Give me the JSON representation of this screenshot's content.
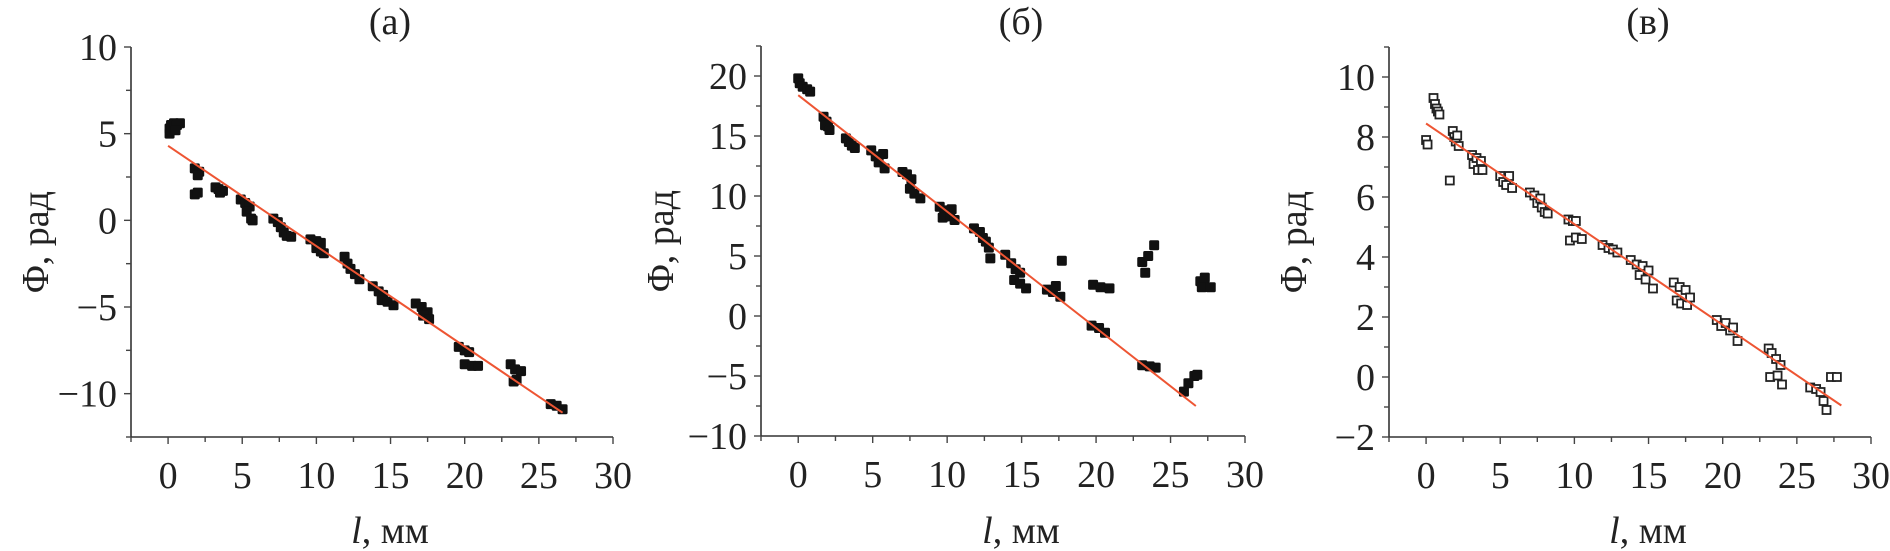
{
  "chart_data": [
    {
      "type": "scatter",
      "title": "(а)",
      "xlabel_italic": "l",
      "xlabel_rest": ", мм",
      "ylabel": "Φ, рад",
      "xlim": [
        -2.5,
        30
      ],
      "ylim": [
        -12.5,
        10
      ],
      "xticks": [
        0,
        5,
        10,
        15,
        20,
        25,
        30
      ],
      "yticks": [
        -10,
        -5,
        0,
        5,
        10
      ],
      "marker": "filled-square",
      "marker_color": "#111111",
      "fit_color": "#ee5533",
      "fit_line": [
        [
          0,
          4.3
        ],
        [
          26.6,
          -11.1
        ]
      ],
      "points": [
        [
          0.1,
          5.0
        ],
        [
          0.1,
          5.3
        ],
        [
          0.2,
          5.5
        ],
        [
          0.4,
          5.6
        ],
        [
          0.6,
          5.5
        ],
        [
          0.8,
          5.6
        ],
        [
          0.5,
          5.2
        ],
        [
          1.8,
          3.0
        ],
        [
          2.1,
          2.8
        ],
        [
          2.0,
          2.6
        ],
        [
          1.8,
          1.5
        ],
        [
          2.0,
          1.6
        ],
        [
          3.2,
          1.9
        ],
        [
          3.4,
          1.8
        ],
        [
          3.7,
          1.7
        ],
        [
          3.5,
          1.6
        ],
        [
          4.9,
          1.2
        ],
        [
          5.2,
          1.0
        ],
        [
          5.5,
          0.8
        ],
        [
          5.3,
          0.5
        ],
        [
          5.6,
          0.1
        ],
        [
          5.7,
          0.0
        ],
        [
          7.1,
          0.1
        ],
        [
          7.4,
          -0.1
        ],
        [
          7.6,
          -0.4
        ],
        [
          7.8,
          -0.7
        ],
        [
          8.0,
          -0.9
        ],
        [
          8.3,
          -0.95
        ],
        [
          9.6,
          -1.1
        ],
        [
          10.0,
          -1.2
        ],
        [
          10.3,
          -1.3
        ],
        [
          10.0,
          -1.6
        ],
        [
          10.3,
          -1.8
        ],
        [
          10.5,
          -1.9
        ],
        [
          11.9,
          -2.1
        ],
        [
          12.1,
          -2.5
        ],
        [
          12.3,
          -2.8
        ],
        [
          12.6,
          -3.1
        ],
        [
          12.9,
          -3.4
        ],
        [
          13.8,
          -3.8
        ],
        [
          14.2,
          -4.1
        ],
        [
          14.5,
          -4.3
        ],
        [
          14.4,
          -4.6
        ],
        [
          14.8,
          -4.7
        ],
        [
          15.2,
          -4.9
        ],
        [
          16.7,
          -4.8
        ],
        [
          17.1,
          -5.0
        ],
        [
          17.5,
          -5.3
        ],
        [
          17.2,
          -5.5
        ],
        [
          17.6,
          -5.7
        ],
        [
          19.6,
          -7.3
        ],
        [
          20.0,
          -7.5
        ],
        [
          20.3,
          -7.6
        ],
        [
          20.0,
          -8.3
        ],
        [
          20.5,
          -8.4
        ],
        [
          20.9,
          -8.4
        ],
        [
          23.1,
          -8.3
        ],
        [
          23.4,
          -8.6
        ],
        [
          23.8,
          -8.7
        ],
        [
          23.5,
          -9.2
        ],
        [
          23.3,
          -9.3
        ],
        [
          25.8,
          -10.6
        ],
        [
          26.2,
          -10.7
        ],
        [
          26.6,
          -10.9
        ]
      ]
    },
    {
      "type": "scatter",
      "title": "(б)",
      "xlabel_italic": "l",
      "xlabel_rest": ", мм",
      "ylabel": "Φ, рад",
      "xlim": [
        -2.5,
        30
      ],
      "ylim": [
        -10,
        22.5
      ],
      "xticks": [
        0,
        5,
        10,
        15,
        20,
        25,
        30
      ],
      "yticks": [
        -10,
        -5,
        0,
        5,
        10,
        15,
        20
      ],
      "marker": "filled-square",
      "marker_color": "#111111",
      "fit_color": "#ee5533",
      "fit_line": [
        [
          0,
          18.4
        ],
        [
          26.7,
          -7.5
        ]
      ],
      "points": [
        [
          0.0,
          19.8
        ],
        [
          0.1,
          19.4
        ],
        [
          0.3,
          19.1
        ],
        [
          0.6,
          18.9
        ],
        [
          0.8,
          18.7
        ],
        [
          1.7,
          16.6
        ],
        [
          1.9,
          16.2
        ],
        [
          2.0,
          15.8
        ],
        [
          1.8,
          15.9
        ],
        [
          2.1,
          15.5
        ],
        [
          3.2,
          14.8
        ],
        [
          3.4,
          14.5
        ],
        [
          3.6,
          14.2
        ],
        [
          3.8,
          14.0
        ],
        [
          4.9,
          13.8
        ],
        [
          5.2,
          13.3
        ],
        [
          5.4,
          12.8
        ],
        [
          5.7,
          13.5
        ],
        [
          5.8,
          12.3
        ],
        [
          7.0,
          12.0
        ],
        [
          7.3,
          11.8
        ],
        [
          7.6,
          11.4
        ],
        [
          7.5,
          10.6
        ],
        [
          7.8,
          10.2
        ],
        [
          8.2,
          9.8
        ],
        [
          9.5,
          9.1
        ],
        [
          9.8,
          8.8
        ],
        [
          10.3,
          8.9
        ],
        [
          9.7,
          8.2
        ],
        [
          10.2,
          8.3
        ],
        [
          10.5,
          8.0
        ],
        [
          11.8,
          7.3
        ],
        [
          12.2,
          7.0
        ],
        [
          12.4,
          6.5
        ],
        [
          12.6,
          6.2
        ],
        [
          12.8,
          5.7
        ],
        [
          12.9,
          4.8
        ],
        [
          13.9,
          5.1
        ],
        [
          14.3,
          4.4
        ],
        [
          14.6,
          3.9
        ],
        [
          14.9,
          3.6
        ],
        [
          14.5,
          3.0
        ],
        [
          14.9,
          2.7
        ],
        [
          15.3,
          2.3
        ],
        [
          16.7,
          2.2
        ],
        [
          17.1,
          2.0
        ],
        [
          17.3,
          2.5
        ],
        [
          17.6,
          1.6
        ],
        [
          17.7,
          4.6
        ],
        [
          19.8,
          2.6
        ],
        [
          20.3,
          2.4
        ],
        [
          20.9,
          2.3
        ],
        [
          19.7,
          -0.8
        ],
        [
          20.2,
          -1.0
        ],
        [
          20.6,
          -1.4
        ],
        [
          23.1,
          4.5
        ],
        [
          23.5,
          5.0
        ],
        [
          23.9,
          5.9
        ],
        [
          23.3,
          3.6
        ],
        [
          23.1,
          -4.1
        ],
        [
          23.6,
          -4.2
        ],
        [
          24.0,
          -4.3
        ],
        [
          25.9,
          -6.3
        ],
        [
          26.2,
          -5.6
        ],
        [
          26.6,
          -5.0
        ],
        [
          26.8,
          -4.9
        ],
        [
          27.0,
          2.9
        ],
        [
          27.3,
          3.2
        ],
        [
          27.1,
          2.4
        ],
        [
          27.7,
          2.4
        ]
      ]
    },
    {
      "type": "scatter",
      "title": "(в)",
      "xlabel_italic": "l",
      "xlabel_rest": ", мм",
      "ylabel": "Φ, рад",
      "xlim": [
        -2.5,
        30
      ],
      "ylim": [
        -2,
        11
      ],
      "xticks": [
        0,
        5,
        10,
        15,
        20,
        25,
        30
      ],
      "yticks": [
        -2,
        0,
        2,
        4,
        6,
        8,
        10
      ],
      "marker": "open-square",
      "marker_color": "#222222",
      "fit_color": "#ee5533",
      "fit_line": [
        [
          0,
          8.45
        ],
        [
          28,
          -0.95
        ]
      ],
      "points": [
        [
          0.0,
          7.9
        ],
        [
          0.1,
          7.75
        ],
        [
          0.5,
          9.3
        ],
        [
          0.6,
          9.1
        ],
        [
          0.7,
          8.95
        ],
        [
          0.8,
          8.85
        ],
        [
          0.9,
          8.75
        ],
        [
          1.6,
          6.55
        ],
        [
          1.8,
          8.2
        ],
        [
          1.9,
          8.0
        ],
        [
          2.0,
          7.85
        ],
        [
          2.1,
          8.05
        ],
        [
          2.2,
          7.7
        ],
        [
          3.1,
          7.4
        ],
        [
          3.2,
          7.1
        ],
        [
          3.4,
          7.3
        ],
        [
          3.5,
          6.9
        ],
        [
          3.7,
          7.2
        ],
        [
          3.8,
          6.9
        ],
        [
          5.0,
          6.7
        ],
        [
          5.2,
          6.5
        ],
        [
          5.4,
          6.4
        ],
        [
          5.6,
          6.7
        ],
        [
          5.8,
          6.3
        ],
        [
          7.0,
          6.15
        ],
        [
          7.3,
          6.05
        ],
        [
          7.5,
          5.8
        ],
        [
          7.7,
          5.95
        ],
        [
          7.8,
          5.65
        ],
        [
          8.0,
          5.5
        ],
        [
          8.2,
          5.45
        ],
        [
          9.6,
          5.25
        ],
        [
          9.9,
          5.2
        ],
        [
          10.1,
          5.2
        ],
        [
          9.7,
          4.55
        ],
        [
          10.1,
          4.65
        ],
        [
          10.5,
          4.6
        ],
        [
          11.9,
          4.4
        ],
        [
          12.3,
          4.3
        ],
        [
          12.6,
          4.25
        ],
        [
          12.9,
          4.15
        ],
        [
          13.8,
          3.9
        ],
        [
          14.2,
          3.75
        ],
        [
          14.6,
          3.7
        ],
        [
          14.4,
          3.4
        ],
        [
          14.8,
          3.25
        ],
        [
          15.0,
          3.55
        ],
        [
          15.3,
          2.95
        ],
        [
          16.7,
          3.15
        ],
        [
          17.1,
          3.0
        ],
        [
          17.5,
          2.9
        ],
        [
          16.9,
          2.55
        ],
        [
          17.2,
          2.45
        ],
        [
          17.6,
          2.4
        ],
        [
          17.8,
          2.65
        ],
        [
          19.6,
          1.9
        ],
        [
          19.9,
          1.7
        ],
        [
          20.2,
          1.8
        ],
        [
          20.5,
          1.55
        ],
        [
          20.7,
          1.65
        ],
        [
          21.0,
          1.2
        ],
        [
          23.1,
          0.95
        ],
        [
          23.3,
          0.8
        ],
        [
          23.6,
          0.6
        ],
        [
          23.9,
          0.4
        ],
        [
          23.2,
          0.0
        ],
        [
          23.7,
          0.05
        ],
        [
          24.0,
          -0.25
        ],
        [
          25.9,
          -0.35
        ],
        [
          26.3,
          -0.4
        ],
        [
          26.6,
          -0.5
        ],
        [
          26.8,
          -0.8
        ],
        [
          27.0,
          -1.1
        ],
        [
          27.3,
          0.0
        ],
        [
          27.7,
          0.0
        ]
      ]
    }
  ]
}
